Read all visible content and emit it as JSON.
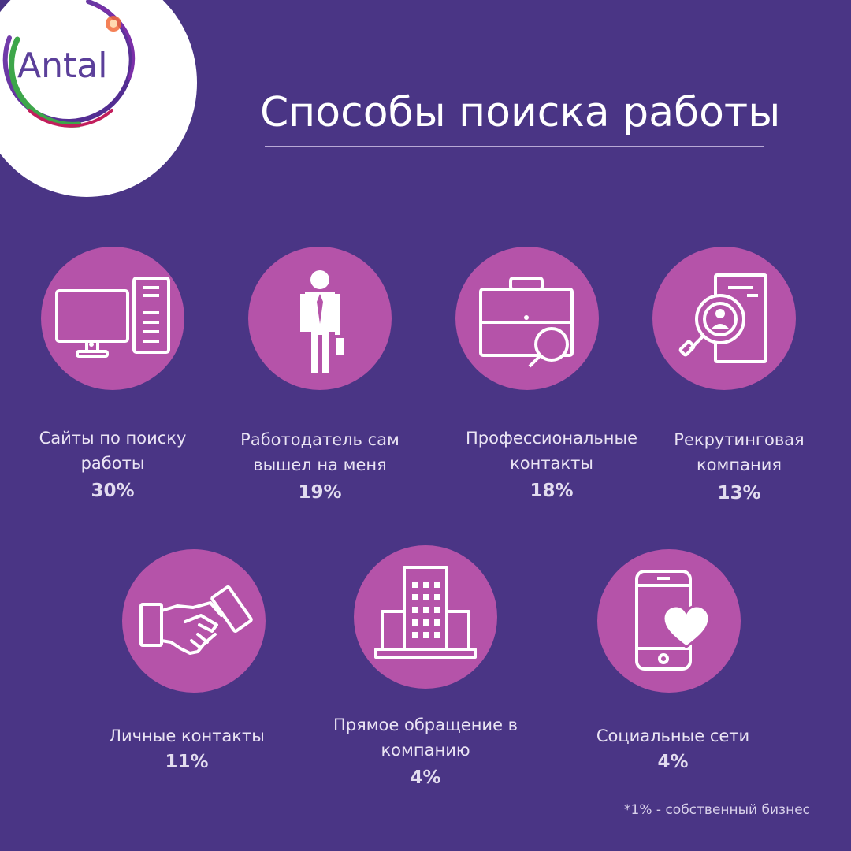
{
  "brand": {
    "logo_text": "Antal"
  },
  "page": {
    "title": "Способы поиска работы",
    "footnote": "*1% - собственный бизнес"
  },
  "colors": {
    "background": "#4a3585",
    "circle": "#b553a9",
    "text": "#eae4f4"
  },
  "chart_data": {
    "type": "table",
    "title": "Способы поиска работы",
    "categories": [
      "Сайты по поиску работы",
      "Работодатель сам вышел на меня",
      "Профессиональные контакты",
      "Рекрутинговая компания",
      "Личные контакты",
      "Прямое обращение в компанию",
      "Социальные сети"
    ],
    "values": [
      30,
      19,
      18,
      13,
      11,
      4,
      4
    ],
    "unit": "%",
    "items": [
      {
        "icon": "desktop-computer-icon",
        "label": "Сайты по поиску\nработы",
        "value": "30%"
      },
      {
        "icon": "businessman-icon",
        "label": "Работодатель сам\nвышел на меня",
        "value": "19%"
      },
      {
        "icon": "briefcase-search-icon",
        "label": "Профессиональные\nконтакты",
        "value": "18%"
      },
      {
        "icon": "resume-search-icon",
        "label": "Рекрутинговая\nкомпания",
        "value": "13%"
      },
      {
        "icon": "handshake-icon",
        "label": "Личные контакты",
        "value": "11%"
      },
      {
        "icon": "office-building-icon",
        "label": "Прямое обращение в\nкомпанию",
        "value": "4%"
      },
      {
        "icon": "smartphone-heart-icon",
        "label": "Социальные сети",
        "value": "4%"
      }
    ]
  }
}
